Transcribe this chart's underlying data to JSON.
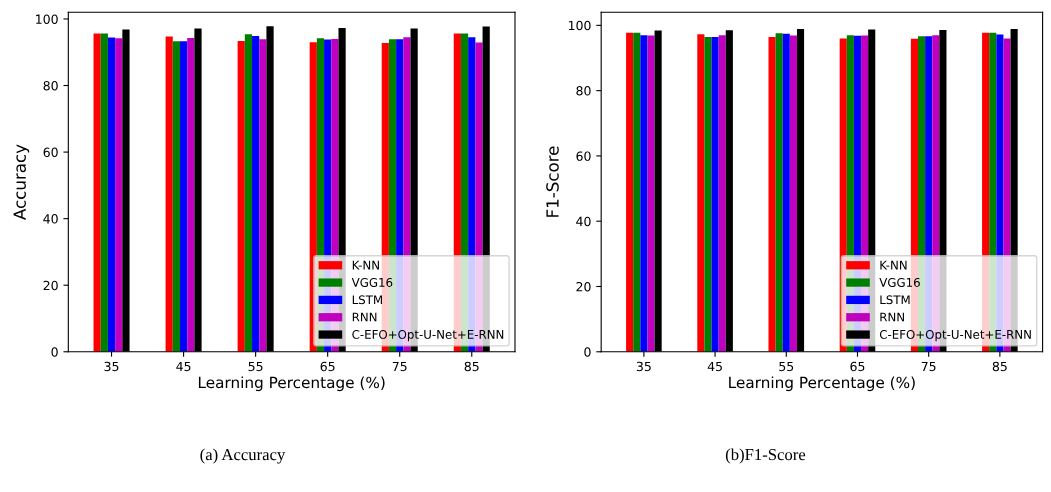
{
  "chart_data": [
    {
      "type": "bar",
      "xlabel": "Learning Percentage (%)",
      "ylabel": "Accuracy",
      "categories": [
        "35",
        "45",
        "55",
        "65",
        "75",
        "85"
      ],
      "ylim": [
        0,
        102
      ],
      "yticks": [
        0,
        20,
        40,
        60,
        80,
        100
      ],
      "legend": "lower right",
      "annotations": [
        "(a) Accuracy"
      ],
      "series": [
        {
          "name": "K-NN",
          "color": "#ff0000",
          "values": [
            95.6,
            94.7,
            93.4,
            93.0,
            92.8,
            95.6
          ]
        },
        {
          "name": "VGG16",
          "color": "#008000",
          "values": [
            95.6,
            93.3,
            95.4,
            94.2,
            93.9,
            95.6
          ]
        },
        {
          "name": "LSTM",
          "color": "#0000ff",
          "values": [
            94.4,
            93.3,
            94.9,
            93.8,
            93.9,
            94.5
          ]
        },
        {
          "name": "RNN",
          "color": "#bf00bf",
          "values": [
            94.2,
            94.3,
            93.9,
            94.0,
            94.5,
            92.9
          ]
        },
        {
          "name": "C-EFO+Opt-U-Net+E-RNN",
          "color": "#000000",
          "values": [
            96.8,
            97.1,
            97.8,
            97.3,
            97.1,
            97.7
          ]
        }
      ]
    },
    {
      "type": "bar",
      "xlabel": "Learning Percentage (%)",
      "ylabel": "F1-Score",
      "categories": [
        "35",
        "45",
        "55",
        "65",
        "75",
        "85"
      ],
      "ylim": [
        0,
        104
      ],
      "yticks": [
        0,
        20,
        40,
        60,
        80,
        100
      ],
      "legend": "lower right",
      "annotations": [
        "(b)F1-Score"
      ],
      "series": [
        {
          "name": "K-NN",
          "color": "#ff0000",
          "values": [
            97.7,
            97.3,
            96.4,
            96.0,
            95.9,
            97.7
          ]
        },
        {
          "name": "VGG16",
          "color": "#008000",
          "values": [
            97.7,
            96.4,
            97.6,
            97.0,
            96.7,
            97.7
          ]
        },
        {
          "name": "LSTM",
          "color": "#0000ff",
          "values": [
            97.0,
            96.4,
            97.4,
            96.8,
            96.7,
            97.2
          ]
        },
        {
          "name": "RNN",
          "color": "#bf00bf",
          "values": [
            96.9,
            97.0,
            96.9,
            96.9,
            97.0,
            96.0
          ]
        },
        {
          "name": "C-EFO+Opt-U-Net+E-RNN",
          "color": "#000000",
          "values": [
            98.4,
            98.5,
            98.9,
            98.7,
            98.6,
            98.9
          ]
        }
      ]
    }
  ]
}
